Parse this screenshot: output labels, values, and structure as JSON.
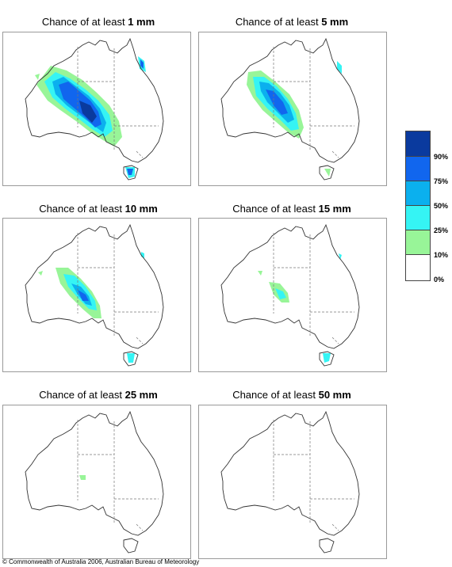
{
  "panels": [
    {
      "prefix": "Chance of at least ",
      "amount": "1 mm"
    },
    {
      "prefix": "Chance of at least ",
      "amount": "5 mm"
    },
    {
      "prefix": "Chance of at least ",
      "amount": "10 mm"
    },
    {
      "prefix": "Chance of at least ",
      "amount": "15 mm"
    },
    {
      "prefix": "Chance of at least ",
      "amount": "25 mm"
    },
    {
      "prefix": "Chance of at least ",
      "amount": "50 mm"
    }
  ],
  "legend": {
    "labels": [
      "90%",
      "75%",
      "50%",
      "25%",
      "10%",
      "0%"
    ],
    "colors": [
      "#0a3a9e",
      "#1166ee",
      "#0bb0ee",
      "#35f4f4",
      "#98f598",
      "#ffffff"
    ]
  },
  "copyright": "© Commonwealth of Australia 2006, Australian Bureau of Meteorology"
}
